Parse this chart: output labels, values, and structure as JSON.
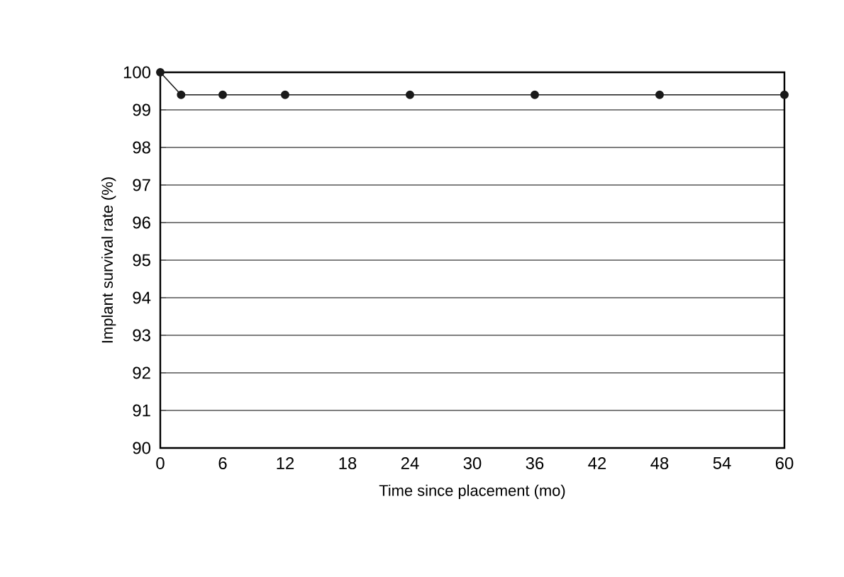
{
  "chart_data": {
    "type": "line",
    "xlabel": "Time since placement (mo)",
    "ylabel": "Implant survival rate (%)",
    "x": [
      0,
      2,
      6,
      12,
      24,
      36,
      48,
      60
    ],
    "series": [
      {
        "color": "#1a1a1a",
        "values": [
          100,
          99.4,
          99.4,
          99.4,
          99.4,
          99.4,
          99.4,
          99.4
        ]
      }
    ],
    "xlim": [
      0,
      60
    ],
    "xticks": [
      0,
      6,
      12,
      18,
      24,
      30,
      36,
      42,
      48,
      54,
      60
    ],
    "ylim": [
      90,
      100
    ],
    "yticks": [
      90,
      91,
      92,
      93,
      94,
      95,
      96,
      97,
      98,
      99,
      100
    ],
    "grid": "y",
    "marker": "circle",
    "line_style": "solid"
  }
}
